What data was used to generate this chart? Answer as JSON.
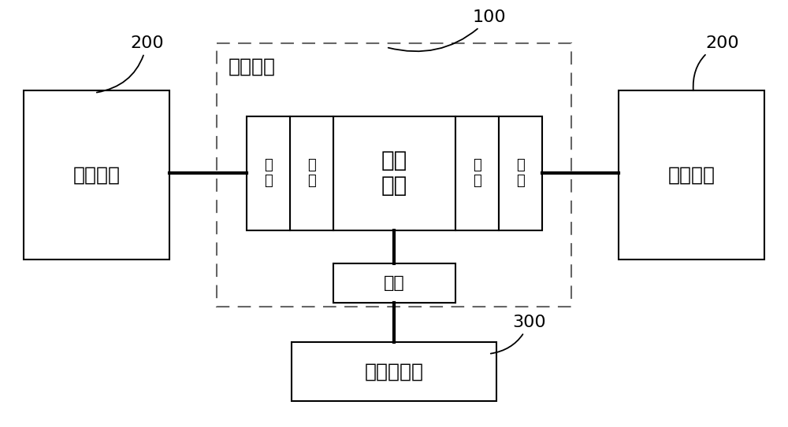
{
  "bg_color": "#ffffff",
  "label_100": "100",
  "label_200": "200",
  "label_300": "300",
  "chip_label": "控制芯片",
  "ctrl_module_label": "控制\n模块",
  "comm_left_label": "通信模块",
  "comm_right_label": "通信模块",
  "user_card_label": "用户识别卡",
  "iface_bottom_label": "接口",
  "iface_left_inner_label": "口\n繁",
  "iface_left_outer_label": "口\n繁",
  "iface_right_inner_label": "端\n口",
  "iface_right_outer_label": "口\n繁",
  "line_color": "#000000",
  "dashed_color": "#666666",
  "figw": 10.0,
  "figh": 5.43,
  "dpi": 100
}
